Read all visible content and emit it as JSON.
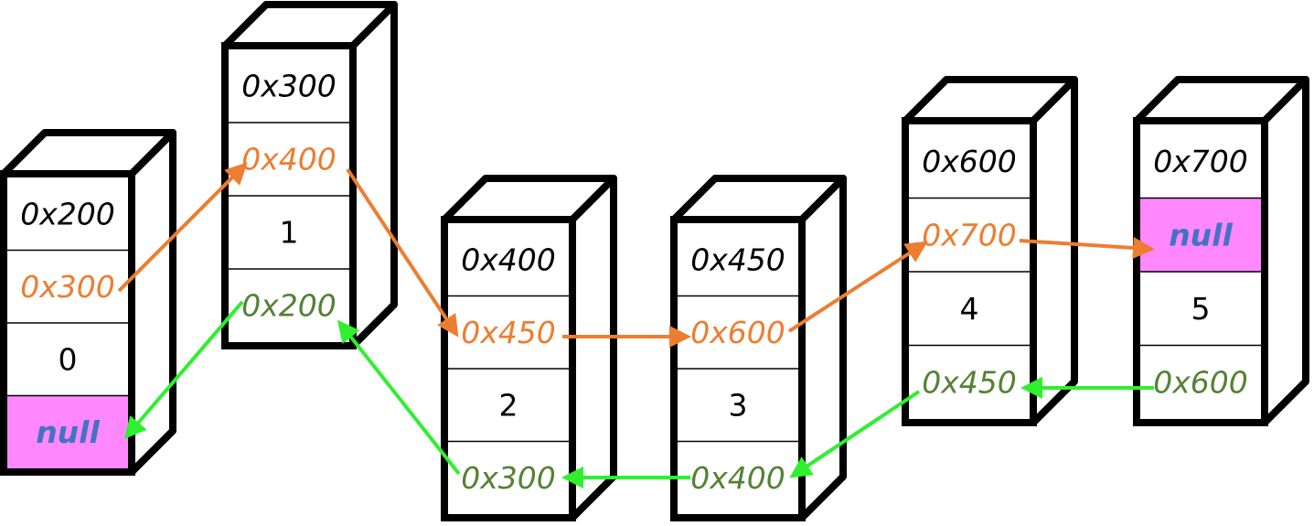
{
  "nodes": [
    {
      "address": "0x200",
      "next": "0x300",
      "value": 0,
      "prev": "null"
    },
    {
      "address": "0x300",
      "next": "0x400",
      "value": 1,
      "prev": "0x200"
    },
    {
      "address": "0x400",
      "next": "0x450",
      "value": 2,
      "prev": "0x300"
    },
    {
      "address": "0x450",
      "next": "0x600",
      "value": 3,
      "prev": "0x400"
    },
    {
      "address": "0x600",
      "next": "0x700",
      "value": 4,
      "prev": "0x450"
    },
    {
      "address": "0x700",
      "next": "null",
      "value": 5,
      "prev": "0x600"
    }
  ]
}
